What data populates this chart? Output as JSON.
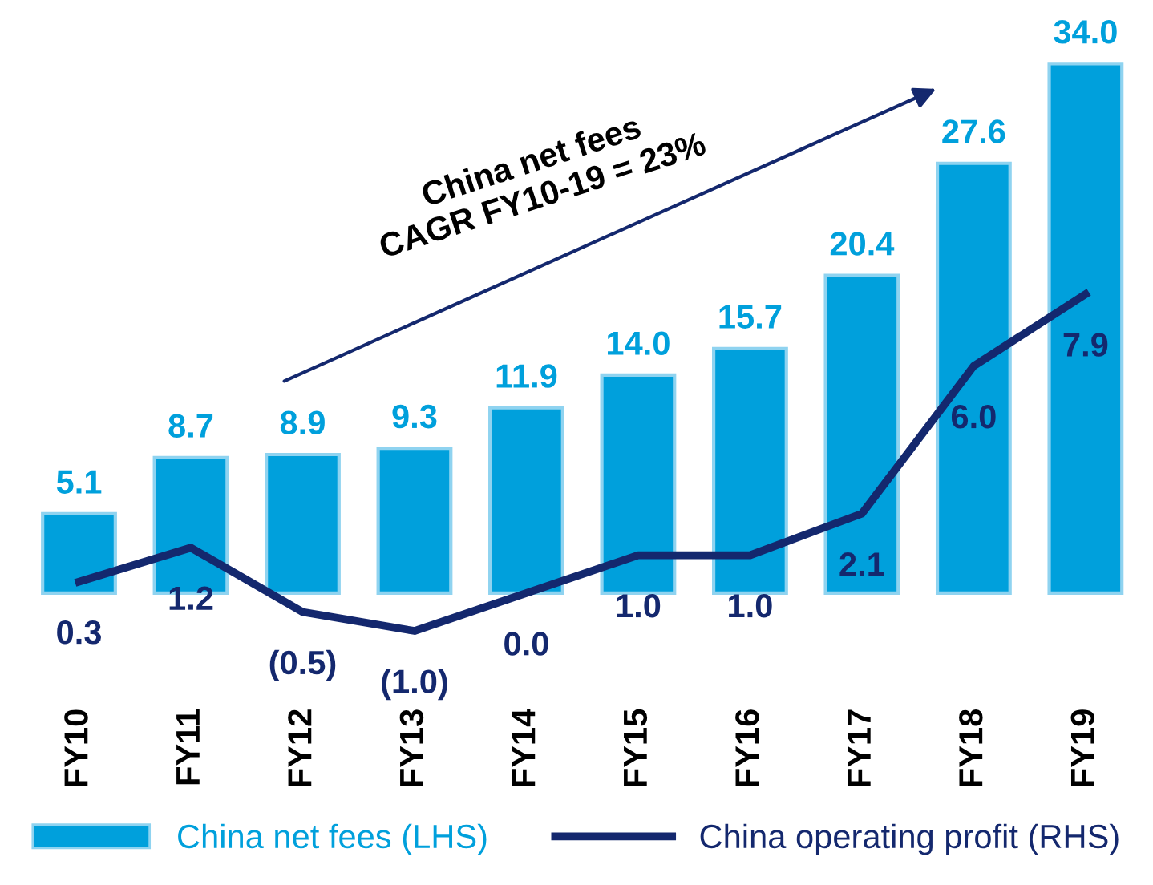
{
  "chart_data": {
    "type": "bar",
    "categories": [
      "FY10",
      "FY11",
      "FY12",
      "FY13",
      "FY14",
      "FY15",
      "FY16",
      "FY17",
      "FY18",
      "FY19"
    ],
    "series": [
      {
        "name": "China net fees (LHS)",
        "color": "#00a0dc",
        "values": [
          5.1,
          8.7,
          8.9,
          9.3,
          11.9,
          14.0,
          15.7,
          20.4,
          27.6,
          34.0
        ],
        "value_labels": [
          "5.1",
          "8.7",
          "8.9",
          "9.3",
          "11.9",
          "14.0",
          "15.7",
          "20.4",
          "27.6",
          "34.0"
        ]
      },
      {
        "name": "China operating profit (RHS)",
        "type": "line",
        "axis": "y2",
        "color": "#14286e",
        "values": [
          0.3,
          1.2,
          -0.5,
          -1.0,
          0.0,
          1.0,
          1.0,
          2.1,
          6.0,
          7.9
        ],
        "value_labels": [
          "0.3",
          "1.2",
          "(0.5)",
          "(1.0)",
          "0.0",
          "1.0",
          "1.0",
          "2.1",
          "6.0",
          "7.9"
        ]
      }
    ],
    "data_labels": true,
    "legend": "bottom",
    "tick_labels": "x",
    "annotations": [
      "China net fees\nCAGR FY10-19 = 23%"
    ]
  }
}
